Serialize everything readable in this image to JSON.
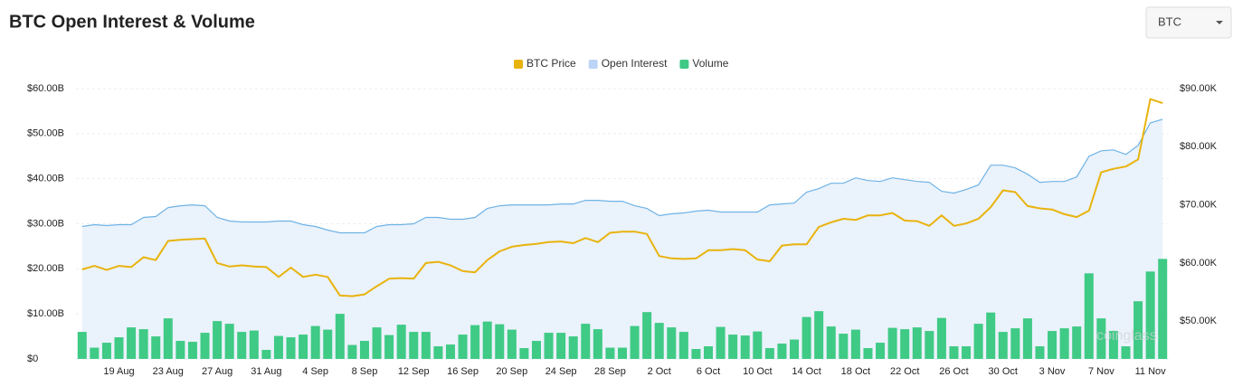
{
  "chart_data": {
    "type": "combo",
    "title": "BTC Open Interest & Volume",
    "selector": "BTC",
    "watermark": "coinglass",
    "categories": [
      null,
      null,
      null,
      "19 Aug",
      null,
      null,
      null,
      "23 Aug",
      null,
      null,
      null,
      "27 Aug",
      null,
      null,
      null,
      "31 Aug",
      null,
      null,
      null,
      "4 Sep",
      null,
      null,
      null,
      "8 Sep",
      null,
      null,
      null,
      "12 Sep",
      null,
      null,
      null,
      "16 Sep",
      null,
      null,
      null,
      "20 Sep",
      null,
      null,
      null,
      "24 Sep",
      null,
      null,
      null,
      "28 Sep",
      null,
      null,
      null,
      "2 Oct",
      null,
      null,
      null,
      "6 Oct",
      null,
      null,
      null,
      "10 Oct",
      null,
      null,
      null,
      "14 Oct",
      null,
      null,
      null,
      "18 Oct",
      null,
      null,
      null,
      "22 Oct",
      null,
      null,
      null,
      "26 Oct",
      null,
      null,
      null,
      "30 Oct",
      null,
      null,
      null,
      "3 Nov",
      null,
      null,
      null,
      "7 Nov",
      null,
      null,
      null,
      "11 Nov",
      null
    ],
    "ylim": [
      0,
      60000000000.0
    ],
    "yticks": [
      {
        "value": 0,
        "label": "$0"
      },
      {
        "value": 10000000000.0,
        "label": "$10.00B"
      },
      {
        "value": 20000000000.0,
        "label": "$20.00B"
      },
      {
        "value": 30000000000.0,
        "label": "$30.00B"
      },
      {
        "value": 40000000000.0,
        "label": "$40.00B"
      },
      {
        "value": 50000000000.0,
        "label": "$50.00B"
      },
      {
        "value": 60000000000.0,
        "label": "$60.00B"
      }
    ],
    "y2lim": [
      43500.0,
      90000.0
    ],
    "y2ticks": [
      {
        "value": 50000.0,
        "label": "$50.00K"
      },
      {
        "value": 60000.0,
        "label": "$60.00K"
      },
      {
        "value": 70000.0,
        "label": "$70.00K"
      },
      {
        "value": 80000.0,
        "label": "$80.00K"
      },
      {
        "value": 90000.0,
        "label": "$90.00K"
      }
    ],
    "grid": true,
    "series": [
      {
        "name": "BTC Price",
        "type": "line",
        "axis": "y2",
        "color": "#e9b30d",
        "values": [
          58900.0,
          59500.0,
          58800.0,
          59500.0,
          59300.0,
          61000.0,
          60500.0,
          63800.0,
          64000.0,
          64100.0,
          64200.0,
          60000.0,
          59400.0,
          59600.0,
          59400.0,
          59300.0,
          57600.0,
          59200.0,
          57600.0,
          58000.0,
          57600.0,
          54400.0,
          54300.0,
          54600.0,
          56000.0,
          57300.0,
          57400.0,
          57300.0,
          60000.0,
          60200.0,
          59600.0,
          58600.0,
          58400.0,
          60500.0,
          62000.0,
          62800.0,
          63100.0,
          63300.0,
          63600.0,
          63700.0,
          63400.0,
          64300.0,
          63600.0,
          65200.0,
          65400.0,
          65400.0,
          65000.0,
          61200.0,
          60800.0,
          60700.0,
          60800.0,
          62200.0,
          62200.0,
          62400.0,
          62200.0,
          60600.0,
          60300.0,
          63000.0,
          63200.0,
          63200.0,
          66200.0,
          67000.0,
          67600.0,
          67400.0,
          68200.0,
          68200.0,
          68600.0,
          67300.0,
          67200.0,
          66400.0,
          68200.0,
          66400.0,
          66800.0,
          67600.0,
          69600.0,
          72500.0,
          72200.0,
          69800.0,
          69400.0,
          69200.0,
          68400.0,
          67900.0,
          69000.0,
          75600.0,
          76200.0,
          76600.0,
          77800.0,
          88200.0,
          87500.0
        ]
      },
      {
        "name": "Open Interest",
        "type": "area",
        "color": "#6fb3e6",
        "fill": "#eaf2fb",
        "values": [
          29400000000.0,
          29800000000.0,
          29600000000.0,
          29800000000.0,
          29800000000.0,
          31400000000.0,
          31600000000.0,
          33600000000.0,
          34000000000.0,
          34200000000.0,
          34000000000.0,
          31400000000.0,
          30600000000.0,
          30400000000.0,
          30400000000.0,
          30400000000.0,
          30600000000.0,
          30600000000.0,
          29800000000.0,
          29400000000.0,
          28600000000.0,
          28000000000.0,
          28000000000.0,
          28000000000.0,
          29400000000.0,
          29800000000.0,
          29800000000.0,
          30000000000.0,
          31400000000.0,
          31400000000.0,
          31000000000.0,
          31000000000.0,
          31400000000.0,
          33400000000.0,
          34000000000.0,
          34200000000.0,
          34200000000.0,
          34200000000.0,
          34200000000.0,
          34400000000.0,
          34400000000.0,
          35200000000.0,
          35200000000.0,
          35000000000.0,
          35000000000.0,
          34000000000.0,
          33400000000.0,
          31800000000.0,
          32200000000.0,
          32400000000.0,
          32800000000.0,
          33000000000.0,
          32600000000.0,
          32600000000.0,
          32600000000.0,
          32600000000.0,
          34200000000.0,
          34400000000.0,
          34600000000.0,
          37000000000.0,
          37800000000.0,
          39000000000.0,
          39000000000.0,
          40200000000.0,
          39600000000.0,
          39400000000.0,
          40200000000.0,
          39800000000.0,
          39400000000.0,
          39200000000.0,
          37200000000.0,
          36800000000.0,
          37600000000.0,
          38600000000.0,
          43000000000.0,
          43000000000.0,
          42400000000.0,
          41000000000.0,
          39200000000.0,
          39400000000.0,
          39400000000.0,
          40400000000.0,
          45000000000.0,
          46200000000.0,
          46400000000.0,
          45400000000.0,
          47400000000.0,
          52400000000.0,
          53200000000.0
        ]
      },
      {
        "name": "Volume",
        "type": "bar",
        "color": "#3fca85",
        "values": [
          6000000000.0,
          2500000000.0,
          3600000000.0,
          4800000000.0,
          7000000000.0,
          6600000000.0,
          5000000000.0,
          9000000000.0,
          4000000000.0,
          3800000000.0,
          5800000000.0,
          8400000000.0,
          7800000000.0,
          6000000000.0,
          6300000000.0,
          2000000000.0,
          5100000000.0,
          4800000000.0,
          5400000000.0,
          7300000000.0,
          6500000000.0,
          10000000000.0,
          3100000000.0,
          4000000000.0,
          7000000000.0,
          5300000000.0,
          7600000000.0,
          6000000000.0,
          6000000000.0,
          2800000000.0,
          3200000000.0,
          5400000000.0,
          7500000000.0,
          8300000000.0,
          7700000000.0,
          6500000000.0,
          2400000000.0,
          4000000000.0,
          5800000000.0,
          5800000000.0,
          5000000000.0,
          7800000000.0,
          6600000000.0,
          2500000000.0,
          2500000000.0,
          7300000000.0,
          10400000000.0,
          8000000000.0,
          7000000000.0,
          6000000000.0,
          2200000000.0,
          2800000000.0,
          7100000000.0,
          5400000000.0,
          5200000000.0,
          6100000000.0,
          2400000000.0,
          3400000000.0,
          4300000000.0,
          9300000000.0,
          10600000000.0,
          7200000000.0,
          5600000000.0,
          6500000000.0,
          2400000000.0,
          3600000000.0,
          6900000000.0,
          6600000000.0,
          7000000000.0,
          6200000000.0,
          9100000000.0,
          2800000000.0,
          2800000000.0,
          7800000000.0,
          10300000000.0,
          6000000000.0,
          6800000000.0,
          9000000000.0,
          2800000000.0,
          6200000000.0,
          6800000000.0,
          7200000000.0,
          19000000000.0,
          9000000000.0,
          6200000000.0,
          2800000000.0,
          12800000000.0,
          19400000000.0,
          22200000000.0
        ]
      }
    ]
  }
}
